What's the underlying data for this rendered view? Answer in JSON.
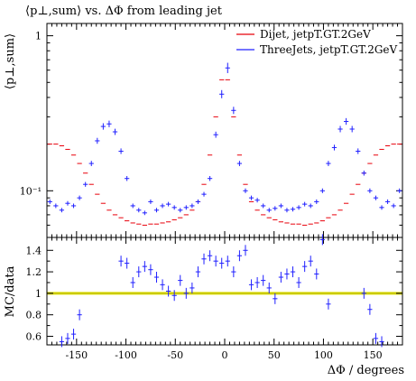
{
  "chart_data": [
    {
      "type": "scatter",
      "title": "⟨p⊥,sum⟩ vs. ΔΦ from leading jet",
      "ylabel": "⟨p⊥,sum⟩",
      "xlabel": "",
      "xlim": [
        -180,
        180
      ],
      "ylim": [
        0.05,
        1.2
      ],
      "yscale": "log",
      "yticks": [
        {
          "value": 0.1,
          "label": "10⁻¹"
        },
        {
          "value": 1,
          "label": "1"
        }
      ],
      "legend_position": "top-right",
      "series": [
        {
          "name": "Dijet, jetpT.GT.2GeV",
          "color": "#e8000b",
          "x": [
            -177,
            -171,
            -165,
            -159,
            -153,
            -147,
            -141,
            -135,
            -129,
            -123,
            -117,
            -111,
            -105,
            -99,
            -93,
            -87,
            -81,
            -75,
            -69,
            -63,
            -57,
            -51,
            -45,
            -39,
            -33,
            -27,
            -21,
            -15,
            -9,
            -3,
            3,
            9,
            15,
            21,
            27,
            33,
            39,
            45,
            51,
            57,
            63,
            69,
            75,
            81,
            87,
            93,
            99,
            105,
            111,
            117,
            123,
            129,
            135,
            141,
            147,
            153,
            159,
            165,
            171,
            177
          ],
          "y": [
            0.2,
            0.2,
            0.195,
            0.185,
            0.17,
            0.15,
            0.13,
            0.11,
            0.095,
            0.083,
            0.075,
            0.07,
            0.067,
            0.064,
            0.062,
            0.061,
            0.06,
            0.061,
            0.061,
            0.062,
            0.063,
            0.065,
            0.067,
            0.07,
            0.075,
            0.085,
            0.11,
            0.17,
            0.3,
            0.52,
            0.52,
            0.3,
            0.17,
            0.11,
            0.085,
            0.075,
            0.07,
            0.067,
            0.065,
            0.063,
            0.062,
            0.061,
            0.061,
            0.06,
            0.061,
            0.062,
            0.064,
            0.067,
            0.07,
            0.075,
            0.083,
            0.095,
            0.11,
            0.13,
            0.15,
            0.17,
            0.185,
            0.195,
            0.2,
            0.2
          ]
        },
        {
          "name": "ThreeJets, jetpT.GT.2GeV",
          "color": "#2020ff",
          "x": [
            -177,
            -171,
            -165,
            -159,
            -153,
            -147,
            -141,
            -135,
            -129,
            -123,
            -117,
            -111,
            -105,
            -99,
            -93,
            -87,
            -81,
            -75,
            -69,
            -63,
            -57,
            -51,
            -45,
            -39,
            -33,
            -27,
            -21,
            -15,
            -9,
            -3,
            3,
            9,
            15,
            21,
            27,
            33,
            39,
            45,
            51,
            57,
            63,
            69,
            75,
            81,
            87,
            93,
            99,
            105,
            111,
            117,
            123,
            129,
            135,
            141,
            147,
            153,
            159,
            165,
            171,
            177
          ],
          "y": [
            0.085,
            0.08,
            0.075,
            0.083,
            0.08,
            0.09,
            0.11,
            0.15,
            0.21,
            0.26,
            0.27,
            0.24,
            0.18,
            0.12,
            0.08,
            0.075,
            0.072,
            0.085,
            0.075,
            0.08,
            0.082,
            0.078,
            0.075,
            0.078,
            0.08,
            0.085,
            0.095,
            0.12,
            0.23,
            0.42,
            0.62,
            0.33,
            0.15,
            0.1,
            0.09,
            0.087,
            0.08,
            0.075,
            0.077,
            0.08,
            0.075,
            0.076,
            0.078,
            0.082,
            0.08,
            0.085,
            0.1,
            0.15,
            0.19,
            0.25,
            0.28,
            0.25,
            0.18,
            0.13,
            0.1,
            0.09,
            0.078,
            0.085,
            0.08,
            0.1
          ]
        }
      ]
    },
    {
      "type": "scatter",
      "title": "",
      "ylabel": "MC/data",
      "xlabel": "ΔΦ / degrees",
      "xlim": [
        -180,
        180
      ],
      "ylim": [
        0.52,
        1.52
      ],
      "xticks": [
        -150,
        -100,
        -50,
        0,
        50,
        100,
        150
      ],
      "yticks": [
        0.6,
        0.8,
        1,
        1.2,
        1.4
      ],
      "reference_line": 1.0,
      "band": [
        0.985,
        1.015
      ],
      "series": [
        {
          "name": "ThreeJets, jetpT.GT.2GeV",
          "color": "#2020ff",
          "x": [
            -165,
            -159,
            -153,
            -147,
            -105,
            -99,
            -93,
            -87,
            -81,
            -75,
            -69,
            -63,
            -57,
            -51,
            -45,
            -39,
            -33,
            -27,
            -21,
            -15,
            -9,
            -3,
            3,
            9,
            15,
            21,
            27,
            33,
            39,
            45,
            51,
            57,
            63,
            69,
            75,
            81,
            87,
            93,
            99,
            105,
            141,
            147,
            153,
            159
          ],
          "y": [
            0.55,
            0.58,
            0.62,
            0.8,
            1.3,
            1.28,
            1.1,
            1.2,
            1.25,
            1.22,
            1.15,
            1.08,
            1.02,
            0.98,
            1.12,
            1.0,
            1.05,
            1.2,
            1.32,
            1.35,
            1.3,
            1.28,
            1.3,
            1.2,
            1.35,
            1.4,
            1.08,
            1.1,
            1.12,
            1.05,
            0.95,
            1.15,
            1.18,
            1.2,
            1.1,
            1.25,
            1.3,
            1.18,
            1.5,
            0.9,
            1.0,
            0.85,
            0.58,
            0.55
          ]
        }
      ]
    }
  ]
}
